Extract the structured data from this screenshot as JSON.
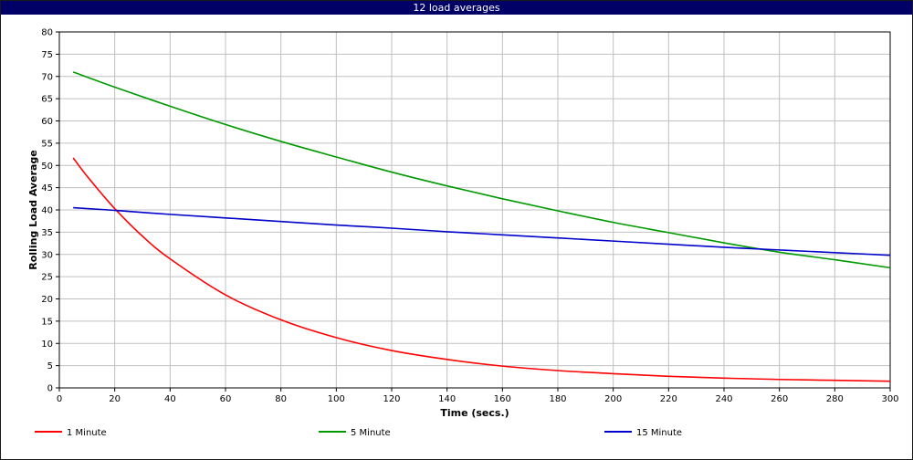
{
  "window": {
    "title": "12 load averages"
  },
  "chart_data": {
    "type": "line",
    "title": "12 load averages",
    "xlabel": "Time (secs.)",
    "ylabel": "Rolling Load Average",
    "xlim": [
      0,
      300
    ],
    "ylim": [
      0,
      80
    ],
    "xticks": [
      0,
      20,
      40,
      60,
      80,
      100,
      120,
      140,
      160,
      180,
      200,
      220,
      240,
      260,
      280,
      300
    ],
    "yticks": [
      0,
      5,
      10,
      15,
      20,
      25,
      30,
      35,
      40,
      45,
      50,
      55,
      60,
      65,
      70,
      75,
      80
    ],
    "grid": true,
    "legend_position": "bottom",
    "series": [
      {
        "name": "1 Minute",
        "color": "#ff0000",
        "x": [
          5,
          10,
          20,
          30,
          40,
          60,
          80,
          100,
          120,
          140,
          160,
          180,
          200,
          220,
          240,
          260,
          280,
          300
        ],
        "y": [
          51.7,
          47.6,
          40.3,
          34.1,
          29.0,
          20.9,
          15.3,
          11.3,
          8.4,
          6.4,
          4.9,
          3.9,
          3.2,
          2.6,
          2.2,
          1.9,
          1.7,
          1.5
        ]
      },
      {
        "name": "5 Minute",
        "color": "#009900",
        "x": [
          5,
          20,
          40,
          60,
          80,
          100,
          120,
          140,
          160,
          180,
          200,
          220,
          240,
          260,
          280,
          300
        ],
        "y": [
          71.0,
          67.6,
          63.3,
          59.2,
          55.4,
          51.9,
          48.5,
          45.4,
          42.5,
          39.8,
          37.2,
          34.9,
          32.6,
          30.5,
          28.8,
          27.0
        ]
      },
      {
        "name": "15 Minute",
        "color": "#0000cc",
        "x": [
          5,
          20,
          40,
          60,
          80,
          100,
          120,
          140,
          160,
          180,
          200,
          220,
          240,
          260,
          280,
          300
        ],
        "y": [
          40.5,
          39.9,
          39.0,
          38.2,
          37.4,
          36.6,
          35.9,
          35.1,
          34.4,
          33.7,
          33.0,
          32.3,
          31.6,
          31.0,
          30.4,
          29.8
        ]
      }
    ]
  }
}
